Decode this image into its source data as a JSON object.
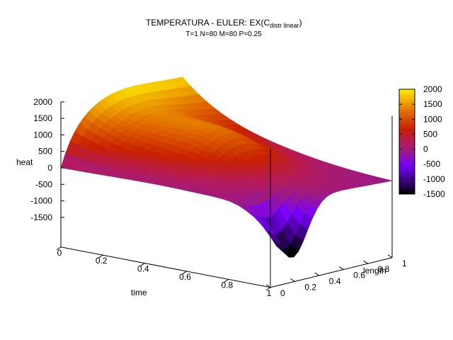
{
  "chart_data": {
    "type": "surface",
    "title": "TEMPERATURA - EULER: EX(C",
    "title_subscript": "distr linear",
    "title_suffix": ")",
    "subtitle": "T=1 N=80 M=80 P=0.25",
    "xlabel": "time",
    "ylabel": "length",
    "zlabel": "heat",
    "x_ticks": [
      "0",
      "0.2",
      "0.4",
      "0.6",
      "0.8",
      "1"
    ],
    "y_ticks": [
      "0",
      "0.2",
      "0.4",
      "0.6",
      "0.8",
      "1"
    ],
    "z_ticks": [
      "2000",
      "1500",
      "1000",
      "500",
      "0",
      "-500",
      "-1000",
      "-1500"
    ],
    "colorbar_ticks": [
      "2000",
      "1500",
      "1000",
      "500",
      "0",
      "-500",
      "-1000",
      "-1500"
    ],
    "xlim": [
      0,
      1
    ],
    "ylim": [
      0,
      1
    ],
    "zlim": [
      -1500,
      2000
    ],
    "colorbar_range": [
      -1500,
      2000
    ],
    "palette": [
      "#000000",
      "#3a007a",
      "#7a00ff",
      "#9a1a8a",
      "#b51b5a",
      "#c82000",
      "#e06a00",
      "#f0b000",
      "#ffee00"
    ],
    "surface_samples": [
      {
        "time": 0.0,
        "length": 0.0,
        "heat": 0
      },
      {
        "time": 0.0,
        "length": 0.5,
        "heat": 1900
      },
      {
        "time": 0.0,
        "length": 1.0,
        "heat": 2000
      },
      {
        "time": 0.5,
        "length": 0.0,
        "heat": 0
      },
      {
        "time": 0.5,
        "length": 0.5,
        "heat": 900
      },
      {
        "time": 0.5,
        "length": 1.0,
        "heat": 100
      },
      {
        "time": 1.0,
        "length": 0.0,
        "heat": 0
      },
      {
        "time": 1.0,
        "length": 0.2,
        "heat": -1600
      },
      {
        "time": 1.0,
        "length": 1.0,
        "heat": 0
      }
    ]
  }
}
